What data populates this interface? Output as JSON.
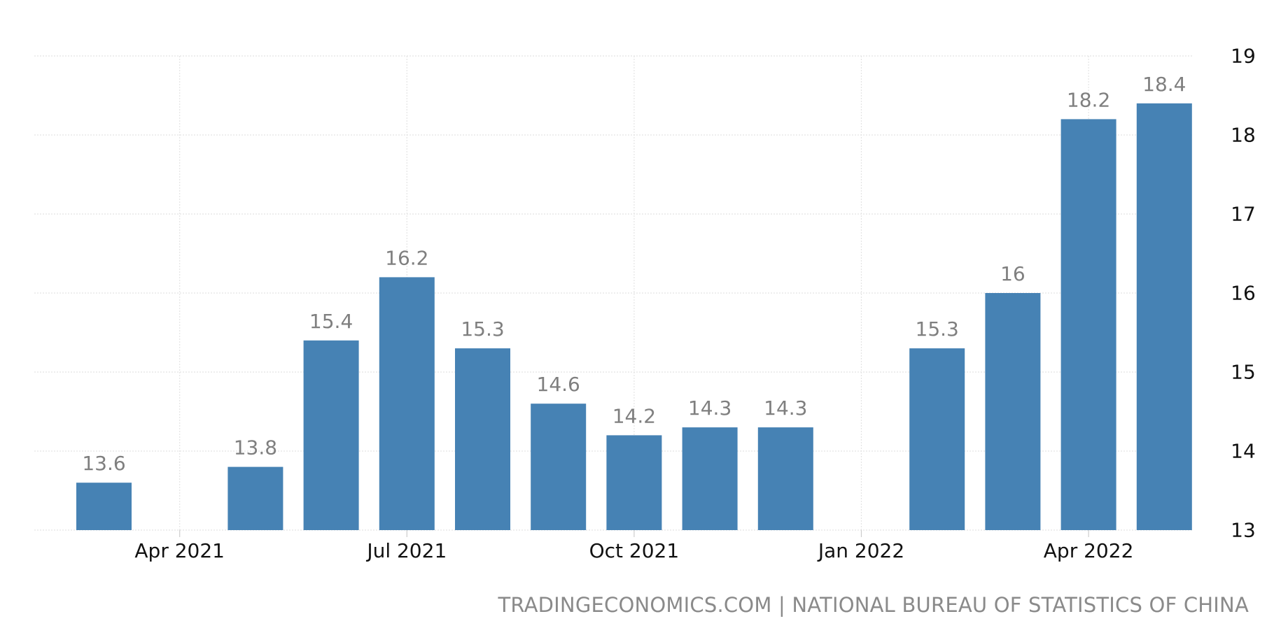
{
  "chart_data": {
    "type": "bar",
    "title": "",
    "xlabel": "",
    "ylabel": "",
    "categories": [
      "Mar 2021",
      "Apr 2021",
      "May 2021",
      "Jun 2021",
      "Jul 2021",
      "Aug 2021",
      "Sep 2021",
      "Oct 2021",
      "Nov 2021",
      "Dec 2021",
      "Jan 2022",
      "Feb 2022",
      "Mar 2022",
      "Apr 2022",
      "May 2022"
    ],
    "values": [
      13.6,
      null,
      13.8,
      15.4,
      16.2,
      15.3,
      14.6,
      14.2,
      14.3,
      14.3,
      null,
      15.3,
      16,
      18.2,
      18.4
    ],
    "x_tick_labels": [
      "Apr 2021",
      "Jul 2021",
      "Oct 2021",
      "Jan 2022",
      "Apr 2022"
    ],
    "ylim": [
      13,
      19
    ],
    "y_ticks": [
      13,
      14,
      15,
      16,
      17,
      18,
      19
    ],
    "y_axis_side": "right",
    "grid": true,
    "bar_color": "#4682b4",
    "data_label_color": "#7f7f7f",
    "grid_color": "#e4e4e4",
    "axis_label_color": "#111111"
  },
  "source_credit": "TRADINGECONOMICS.COM | NATIONAL BUREAU OF STATISTICS OF CHINA"
}
